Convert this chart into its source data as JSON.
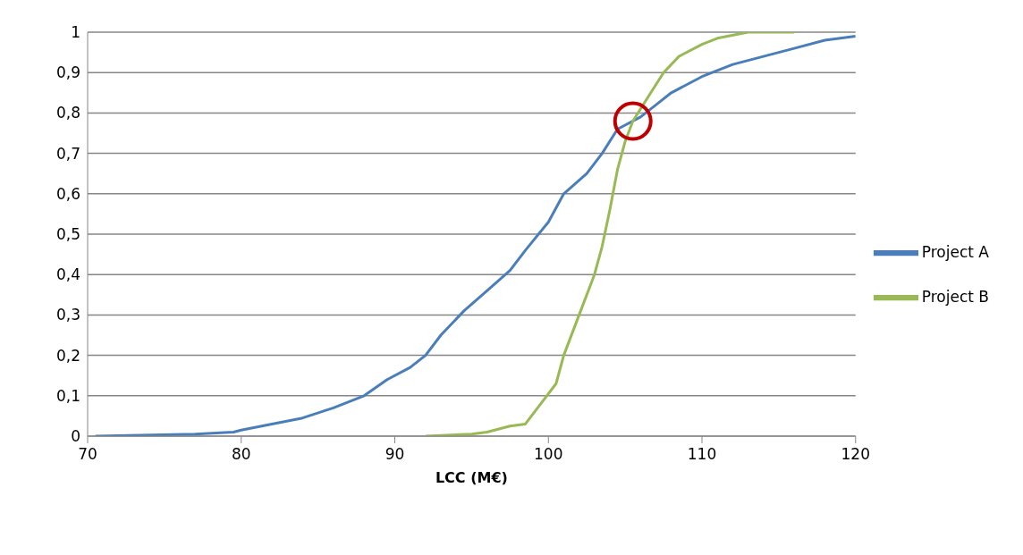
{
  "chart_data": {
    "type": "line",
    "xlabel": "LCC (M€)",
    "xlim": [
      70,
      120
    ],
    "xticks": [
      70,
      80,
      90,
      100,
      110,
      120
    ],
    "ylim": [
      0,
      1
    ],
    "yticks": [
      0,
      {
        "value": 0.1,
        "label": "0,1"
      },
      {
        "value": 0.2,
        "label": "0,2"
      },
      {
        "value": 0.3,
        "label": "0,3"
      },
      {
        "value": 0.4,
        "label": "0,4"
      },
      {
        "value": 0.5,
        "label": "0,5"
      },
      {
        "value": 0.6,
        "label": "0,6"
      },
      {
        "value": 0.7,
        "label": "0,7"
      },
      {
        "value": 0.8,
        "label": "0,8"
      },
      {
        "value": 0.9,
        "label": "0,9"
      },
      1
    ],
    "grid": "y",
    "legend": "right",
    "marker": "none",
    "line_style": "solid",
    "series": [
      {
        "name": "Project A",
        "color": "#4a7ebb",
        "x": [
          70.5,
          77,
          79.5,
          80,
          82,
          84,
          86,
          88,
          89.5,
          91,
          92,
          93,
          94.5,
          96,
          97.5,
          98.5,
          100,
          101,
          102.5,
          103.5,
          104.5,
          106,
          107,
          108,
          109,
          110,
          112,
          114,
          116,
          118,
          120
        ],
        "values": [
          0,
          0.005,
          0.01,
          0.015,
          0.03,
          0.045,
          0.07,
          0.1,
          0.14,
          0.17,
          0.2,
          0.25,
          0.31,
          0.36,
          0.41,
          0.46,
          0.53,
          0.6,
          0.65,
          0.7,
          0.76,
          0.79,
          0.82,
          0.85,
          0.87,
          0.89,
          0.92,
          0.94,
          0.96,
          0.98,
          0.99
        ]
      },
      {
        "name": "Project B",
        "color": "#98b954",
        "x": [
          92,
          95,
          96,
          97.5,
          98.5,
          99.5,
          100.5,
          101,
          102,
          103,
          103.5,
          104,
          104.5,
          105,
          105.5,
          106.5,
          107.5,
          108.5,
          110,
          111,
          113,
          116
        ],
        "values": [
          0,
          0.005,
          0.01,
          0.025,
          0.03,
          0.08,
          0.13,
          0.2,
          0.3,
          0.4,
          0.47,
          0.56,
          0.66,
          0.73,
          0.78,
          0.84,
          0.9,
          0.94,
          0.97,
          0.985,
          1,
          1
        ]
      }
    ]
  }
}
